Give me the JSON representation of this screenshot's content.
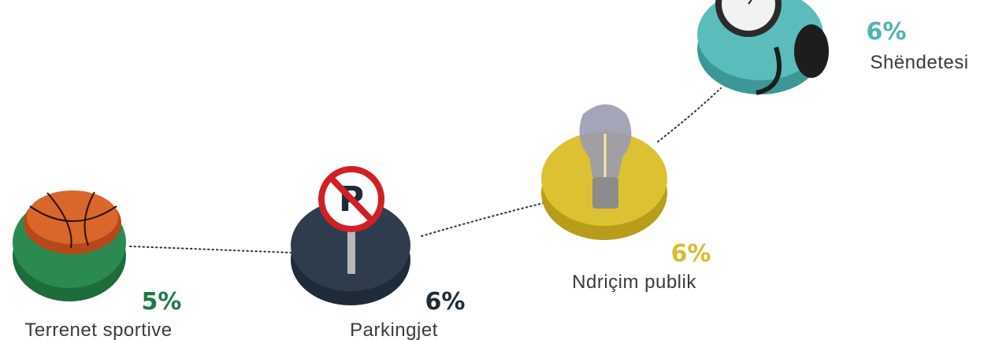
{
  "items": [
    {
      "percent": "5%",
      "label": "Terrenet sportive"
    },
    {
      "percent": "6%",
      "label": "Parkingjet"
    },
    {
      "percent": "6%",
      "label": "Ndriçim publik"
    },
    {
      "percent": "6%",
      "label": "Shëndetesi"
    }
  ]
}
